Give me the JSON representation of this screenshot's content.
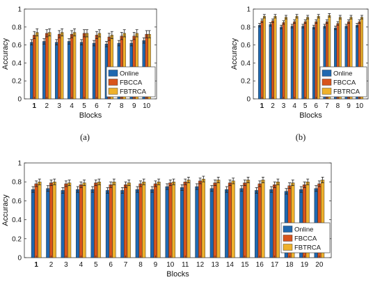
{
  "colors": {
    "Online": "#1f68b0",
    "FBCCA": "#d8541c",
    "FBTRCA": "#eeb12c",
    "error": "#222222"
  },
  "chart_data": [
    {
      "type": "bar",
      "panel_label": "(a)",
      "xlabel": "Blocks",
      "ylabel": "Accuracy",
      "ylim": [
        0,
        1
      ],
      "yticks": [
        "0",
        "0.2",
        "0.4",
        "0.6",
        "0.8",
        "1"
      ],
      "categories": [
        "1",
        "2",
        "3",
        "4",
        "5",
        "6",
        "7",
        "8",
        "9",
        "10"
      ],
      "legend": {
        "position": "bottom-right",
        "entries": [
          "Online",
          "FBCCA",
          "FBTRCA"
        ]
      },
      "series": [
        {
          "name": "Online",
          "values": [
            0.63,
            0.64,
            0.63,
            0.64,
            0.63,
            0.62,
            0.61,
            0.62,
            0.62,
            0.65
          ],
          "errors": [
            0.03,
            0.03,
            0.03,
            0.03,
            0.03,
            0.03,
            0.03,
            0.03,
            0.03,
            0.03
          ]
        },
        {
          "name": "FBCCA",
          "values": [
            0.71,
            0.73,
            0.72,
            0.72,
            0.73,
            0.71,
            0.69,
            0.7,
            0.7,
            0.72
          ],
          "errors": [
            0.04,
            0.04,
            0.04,
            0.04,
            0.04,
            0.04,
            0.04,
            0.04,
            0.04,
            0.04
          ]
        },
        {
          "name": "FBTRCA",
          "values": [
            0.74,
            0.74,
            0.74,
            0.74,
            0.73,
            0.73,
            0.71,
            0.73,
            0.73,
            0.72
          ],
          "errors": [
            0.04,
            0.04,
            0.04,
            0.04,
            0.04,
            0.04,
            0.04,
            0.04,
            0.04,
            0.04
          ]
        }
      ]
    },
    {
      "type": "bar",
      "panel_label": "(b)",
      "xlabel": "Blocks",
      "ylabel": "Accuracy",
      "ylim": [
        0,
        1
      ],
      "yticks": [
        "0",
        "0.2",
        "0.4",
        "0.6",
        "0.8",
        "1"
      ],
      "categories": [
        "1",
        "2",
        "3",
        "4",
        "5",
        "6",
        "7",
        "8",
        "9",
        "10"
      ],
      "legend": {
        "position": "bottom-right",
        "entries": [
          "Online",
          "FBCCA",
          "FBTRCA"
        ]
      },
      "series": [
        {
          "name": "Online",
          "values": [
            0.82,
            0.83,
            0.8,
            0.81,
            0.81,
            0.8,
            0.81,
            0.79,
            0.81,
            0.82
          ],
          "errors": [
            0.02,
            0.02,
            0.02,
            0.02,
            0.02,
            0.02,
            0.02,
            0.02,
            0.02,
            0.02
          ]
        },
        {
          "name": "FBCCA",
          "values": [
            0.87,
            0.87,
            0.85,
            0.86,
            0.86,
            0.86,
            0.86,
            0.84,
            0.86,
            0.86
          ],
          "errors": [
            0.02,
            0.02,
            0.02,
            0.02,
            0.02,
            0.02,
            0.02,
            0.02,
            0.02,
            0.02
          ]
        },
        {
          "name": "FBTRCA",
          "values": [
            0.92,
            0.92,
            0.91,
            0.92,
            0.91,
            0.92,
            0.93,
            0.91,
            0.91,
            0.91
          ],
          "errors": [
            0.02,
            0.02,
            0.02,
            0.02,
            0.02,
            0.02,
            0.02,
            0.02,
            0.02,
            0.02
          ]
        }
      ]
    },
    {
      "type": "bar",
      "panel_label": "",
      "xlabel": "Blocks",
      "ylabel": "Accuracy",
      "ylim": [
        0,
        1
      ],
      "yticks": [
        "0",
        "0.2",
        "0.4",
        "0.6",
        "0.8",
        "1"
      ],
      "categories": [
        "1",
        "2",
        "3",
        "4",
        "5",
        "6",
        "7",
        "8",
        "9",
        "10",
        "11",
        "12",
        "13",
        "14",
        "15",
        "16",
        "17",
        "18",
        "19",
        "20"
      ],
      "legend": {
        "position": "bottom-right",
        "entries": [
          "Online",
          "FBCCA",
          "FBTRCA"
        ]
      },
      "series": [
        {
          "name": "Online",
          "values": [
            0.72,
            0.73,
            0.71,
            0.72,
            0.72,
            0.71,
            0.71,
            0.72,
            0.72,
            0.75,
            0.74,
            0.75,
            0.73,
            0.72,
            0.73,
            0.71,
            0.72,
            0.7,
            0.72,
            0.73
          ],
          "errors": [
            0.03,
            0.03,
            0.03,
            0.03,
            0.03,
            0.03,
            0.03,
            0.03,
            0.03,
            0.03,
            0.03,
            0.03,
            0.03,
            0.03,
            0.03,
            0.03,
            0.03,
            0.03,
            0.03,
            0.03
          ]
        },
        {
          "name": "FBCCA",
          "values": [
            0.78,
            0.79,
            0.78,
            0.77,
            0.79,
            0.77,
            0.77,
            0.78,
            0.78,
            0.79,
            0.8,
            0.81,
            0.79,
            0.79,
            0.79,
            0.78,
            0.77,
            0.76,
            0.77,
            0.78
          ],
          "errors": [
            0.03,
            0.03,
            0.03,
            0.03,
            0.03,
            0.03,
            0.03,
            0.03,
            0.03,
            0.03,
            0.03,
            0.03,
            0.03,
            0.03,
            0.03,
            0.03,
            0.03,
            0.03,
            0.03,
            0.03
          ]
        },
        {
          "name": "FBTRCA",
          "values": [
            0.8,
            0.8,
            0.79,
            0.79,
            0.8,
            0.8,
            0.79,
            0.8,
            0.8,
            0.8,
            0.82,
            0.83,
            0.82,
            0.81,
            0.82,
            0.82,
            0.8,
            0.79,
            0.8,
            0.82
          ],
          "errors": [
            0.03,
            0.03,
            0.03,
            0.03,
            0.03,
            0.03,
            0.03,
            0.03,
            0.03,
            0.03,
            0.03,
            0.03,
            0.03,
            0.03,
            0.03,
            0.03,
            0.03,
            0.03,
            0.03,
            0.03
          ]
        }
      ]
    }
  ]
}
